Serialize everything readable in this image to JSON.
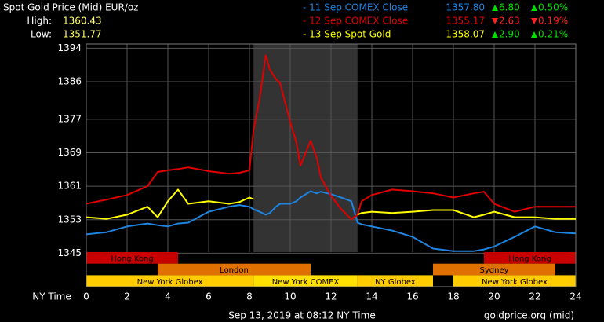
{
  "chart_data": {
    "type": "line",
    "title": "Spot Gold Price (Mid) EUR/oz",
    "high_label": "High:",
    "high": "1360.43",
    "low_label": "Low:",
    "low": "1351.77",
    "x_label": "NY Time",
    "footer": "Sep 13, 2019 at 08:12 NY Time",
    "source": "goldprice.org (mid)",
    "x": [
      0,
      1,
      2,
      3,
      3.5,
      4,
      4.5,
      5,
      6,
      7,
      7.5,
      8,
      8.2,
      8.5,
      8.8,
      9,
      9.3,
      9.5,
      10,
      10.3,
      10.5,
      11,
      11.3,
      11.5,
      12,
      12.5,
      13,
      13.3,
      13.5,
      14,
      15,
      16,
      17,
      18,
      19,
      19.5,
      20,
      21,
      22,
      23,
      24
    ],
    "xlim": [
      0,
      24
    ],
    "xticks": [
      0,
      2,
      4,
      6,
      8,
      10,
      12,
      14,
      16,
      18,
      20,
      22,
      24
    ],
    "ylim": [
      1337,
      1395
    ],
    "yticks": [
      1345,
      1353,
      1361,
      1369,
      1377,
      1386,
      1394
    ],
    "grid": true,
    "highlight": [
      8.2,
      13.3
    ],
    "series": [
      {
        "name": "- 11 Sep COMEX Close",
        "color": "#1e84e0",
        "close": "1357.80",
        "direction": "up",
        "change": "6.80",
        "change_pct": "0.50%",
        "values": [
          1349.5,
          1350.0,
          1351.4,
          1352.1,
          1351.7,
          1351.4,
          1352.1,
          1352.3,
          1354.9,
          1356.1,
          1356.5,
          1356.1,
          1355.5,
          1354.9,
          1354.2,
          1354.6,
          1356.1,
          1356.8,
          1356.8,
          1357.4,
          1358.3,
          1359.8,
          1359.3,
          1359.7,
          1359.1,
          1358.3,
          1357.4,
          1352.3,
          1351.9,
          1351.4,
          1350.4,
          1348.9,
          1346.1,
          1345.5,
          1345.5,
          1345.9,
          1346.6,
          1348.9,
          1351.4,
          1350.0,
          1349.7
        ]
      },
      {
        "name": "- 12 Sep COMEX Close",
        "color": "#e00000",
        "close": "1355.17",
        "direction": "down",
        "change": "2.63",
        "change_pct": "0.19%",
        "values": [
          1356.8,
          1357.8,
          1358.9,
          1361.0,
          1364.4,
          1364.8,
          1365.1,
          1365.5,
          1364.6,
          1364.0,
          1364.2,
          1364.8,
          1374.4,
          1381.9,
          1392.3,
          1388.9,
          1386.6,
          1385.7,
          1376.3,
          1371.5,
          1365.9,
          1371.9,
          1367.8,
          1363.1,
          1358.7,
          1355.5,
          1353.1,
          1354.2,
          1357.4,
          1358.9,
          1360.2,
          1359.8,
          1359.3,
          1358.3,
          1359.3,
          1359.7,
          1356.8,
          1354.9,
          1356.1,
          1356.1,
          1356.1
        ]
      },
      {
        "name": "- 13 Sep Spot Gold",
        "color": "#ffff00",
        "close": "1358.07",
        "direction": "up",
        "change": "2.90",
        "change_pct": "0.21%",
        "values": [
          1353.6,
          1353.2,
          1354.2,
          1356.1,
          1353.6,
          1357.4,
          1360.2,
          1356.8,
          1357.4,
          1356.8,
          1357.2,
          1358.3,
          1357.9,
          null,
          null,
          null,
          null,
          null,
          null,
          null,
          null,
          null,
          null,
          null,
          null,
          null,
          null,
          1354.2,
          1354.6,
          1354.9,
          1354.6,
          1354.9,
          1355.3,
          1355.3,
          1353.6,
          1354.2,
          1354.9,
          1353.6,
          1353.6,
          1353.2,
          1353.2
        ]
      }
    ],
    "sessions": [
      {
        "name": "Hong Kong",
        "start": 0,
        "end": 4.5,
        "row": 0,
        "color": "#c80000"
      },
      {
        "name": "Hong Kong",
        "start": 19.5,
        "end": 24,
        "row": 0,
        "color": "#c80000"
      },
      {
        "name": "London",
        "start": 3.5,
        "end": 11,
        "row": 1,
        "color": "#e07000"
      },
      {
        "name": "Sydney",
        "start": 17,
        "end": 23,
        "row": 1,
        "color": "#e07000"
      },
      {
        "name": "New York Globex",
        "start": 0,
        "end": 8.2,
        "row": 2,
        "color": "#ffcc00"
      },
      {
        "name": "New York COMEX",
        "start": 8.2,
        "end": 13.3,
        "row": 2,
        "color": "#ffe000"
      },
      {
        "name": "NY Globex",
        "start": 13.3,
        "end": 17,
        "row": 2,
        "color": "#ffcc00"
      },
      {
        "name": "New York Globex",
        "start": 18,
        "end": 24,
        "row": 2,
        "color": "#ffcc00"
      }
    ]
  }
}
